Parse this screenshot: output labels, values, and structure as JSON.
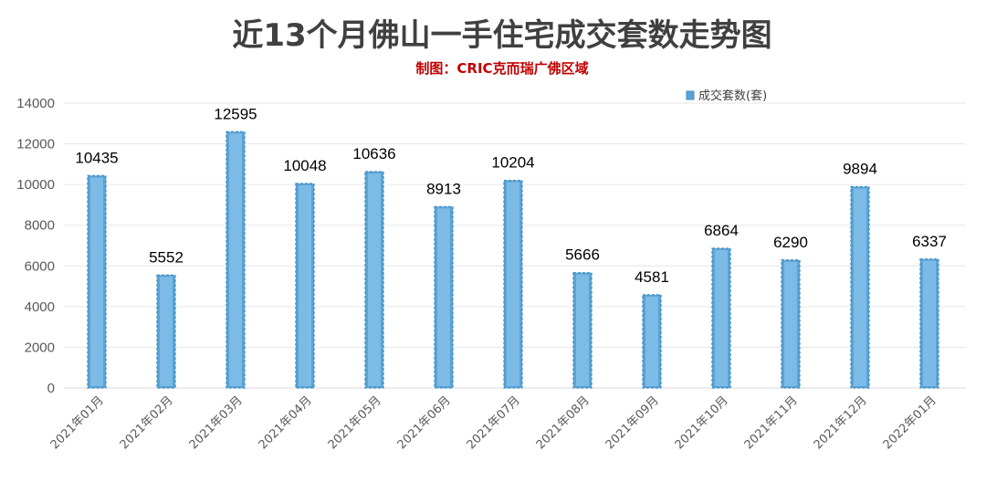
{
  "chart_data": {
    "type": "bar",
    "title": "近13个月佛山一手住宅成交套数走势图",
    "subtitle": "制图：CRIC克而瑞广佛区域",
    "categories": [
      "2021年01月",
      "2021年02月",
      "2021年03月",
      "2021年04月",
      "2021年05月",
      "2021年06月",
      "2021年07月",
      "2021年08月",
      "2021年09月",
      "2021年10月",
      "2021年11月",
      "2021年12月",
      "2022年01月"
    ],
    "series": [
      {
        "name": "成交套数(套)",
        "values": [
          10435,
          5552,
          12595,
          10048,
          10636,
          8913,
          10204,
          5666,
          4581,
          6864,
          6290,
          9894,
          6337
        ]
      }
    ],
    "ylim": [
      0,
      14000
    ],
    "yticks": [
      0,
      2000,
      4000,
      6000,
      8000,
      10000,
      12000,
      14000
    ],
    "grid": true,
    "legend_position": "top-right",
    "bar_color": "#5ba3d6",
    "title_color": "#404040",
    "subtitle_color": "#c00000"
  }
}
